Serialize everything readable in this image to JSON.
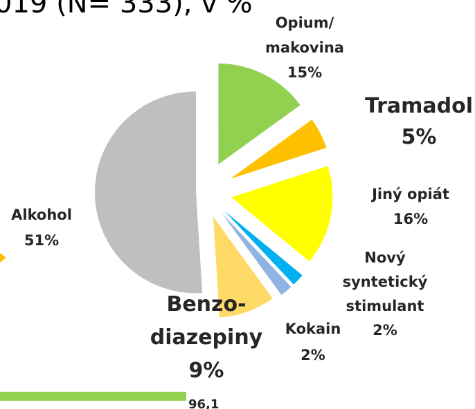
{
  "chart_data": [
    {
      "type": "pie",
      "title": "019 (N= 333), v %",
      "categories": [
        "Opium/\nmakovina",
        "Tramadol",
        "Jiný opiát",
        "Nový\nsyntetický\nstimulant",
        "Kokain",
        "Benzo-\ndiazepiny",
        "Alkohol"
      ],
      "values": [
        15,
        5,
        16,
        2,
        2,
        9,
        51
      ],
      "value_labels": [
        "15%",
        "5%",
        "16%",
        "2%",
        "2%",
        "9%",
        "51%"
      ],
      "colors": [
        "#92d050",
        "#ffc000",
        "#ffff00",
        "#00b0f0",
        "#8eb4e3",
        "#ffd966",
        "#bfbfbf"
      ]
    },
    {
      "type": "bar",
      "values": [
        96.1
      ],
      "value_labels": [
        "96,1"
      ],
      "color": "#92d050"
    }
  ]
}
